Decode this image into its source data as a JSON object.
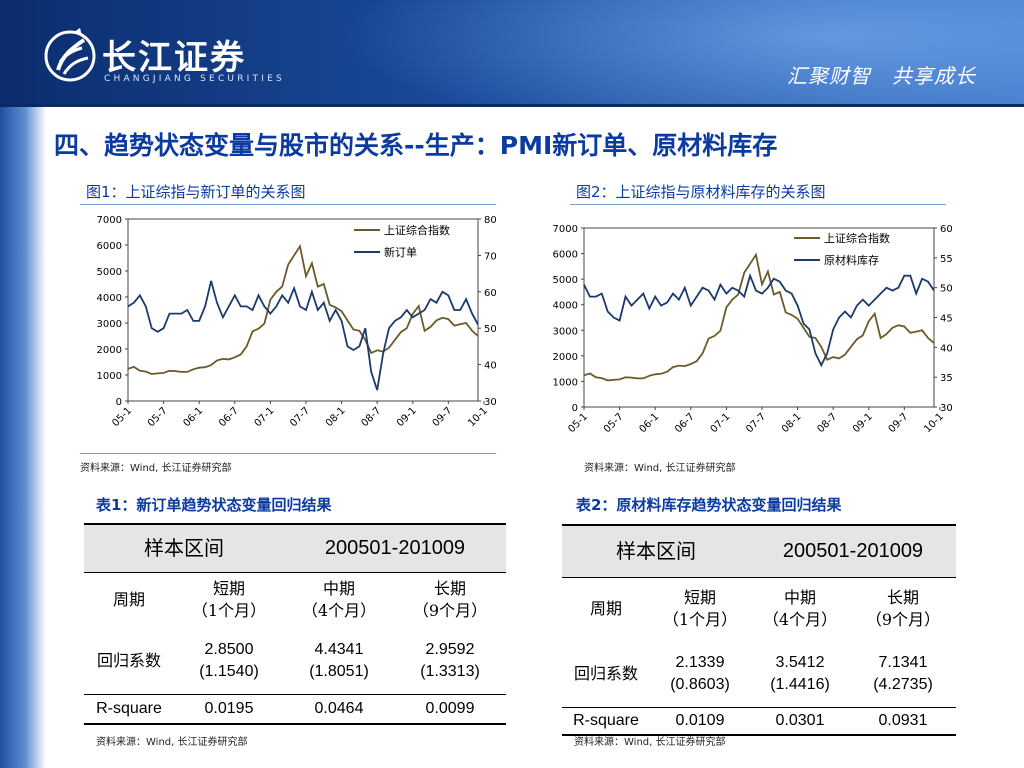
{
  "header": {
    "logo_name": "长江证券",
    "logo_sub": "CHANGJIANG SECURITIES",
    "slogan": "汇聚财智　共享成长"
  },
  "colors": {
    "title_blue": "#0b3aa0",
    "series_index": "#6b5a2a",
    "series_pmi": "#1a3a6c"
  },
  "title": "四、趋势状态变量与股市的关系--生产：PMI新订单、原材料库存",
  "figure1": {
    "caption": "图1：上证综指与新订单的关系图",
    "source": "资料来源：Wind, 长江证券研究部",
    "chart_data": {
      "type": "line",
      "x_ticks": [
        "05-1",
        "05-7",
        "06-1",
        "06-7",
        "07-1",
        "07-7",
        "08-1",
        "08-7",
        "09-1",
        "09-7",
        "10-1"
      ],
      "left_axis": {
        "ticks": [
          "7000",
          "6000",
          "5000",
          "4000",
          "3000",
          "2000",
          "1000",
          "0"
        ],
        "ylim": [
          0,
          7000
        ]
      },
      "right_axis": {
        "ticks": [
          "80",
          "70",
          "60",
          "50",
          "40",
          "30"
        ],
        "ylim": [
          30,
          80
        ]
      },
      "legend_position": "top-right",
      "series": [
        {
          "name": "上证综合指数",
          "axis": "left",
          "values": [
            1240,
            1310,
            1160,
            1130,
            1040,
            1060,
            1080,
            1160,
            1150,
            1120,
            1120,
            1220,
            1280,
            1300,
            1380,
            1560,
            1620,
            1600,
            1680,
            1790,
            2100,
            2680,
            2780,
            2980,
            3900,
            4200,
            4400,
            5250,
            5600,
            5950,
            4800,
            5300,
            4400,
            4500,
            3700,
            3600,
            3450,
            3100,
            2750,
            2700,
            2350,
            1850,
            1950,
            1900,
            2050,
            2350,
            2650,
            2800,
            3350,
            3650,
            2700,
            2850,
            3100,
            3200,
            3150,
            2900,
            2950,
            3000,
            2700,
            2500
          ]
        },
        {
          "name": "新订单",
          "axis": "right",
          "values": [
            56,
            57,
            59,
            56,
            50,
            49,
            50,
            54,
            54,
            54,
            55,
            52,
            52,
            56,
            63,
            57,
            53,
            56,
            59,
            56,
            56,
            55,
            59,
            56,
            54,
            56,
            59,
            57,
            61,
            56,
            55,
            60,
            55,
            57,
            52,
            55,
            52,
            45,
            44,
            45,
            50,
            38,
            33,
            43,
            50,
            52,
            53,
            55,
            53,
            54,
            55,
            58,
            57,
            60,
            59,
            55,
            55,
            58,
            54,
            51
          ]
        }
      ]
    }
  },
  "figure2": {
    "caption": "图2：上证综指与原材料库存的关系图",
    "source": "资料来源：Wind, 长江证券研究部",
    "chart_data": {
      "type": "line",
      "x_ticks": [
        "05-1",
        "05-7",
        "06-1",
        "06-7",
        "07-1",
        "07-7",
        "08-1",
        "08-7",
        "09-1",
        "09-7",
        "10-1"
      ],
      "left_axis": {
        "ticks": [
          "7000",
          "6000",
          "5000",
          "4000",
          "3000",
          "2000",
          "1000",
          "0"
        ],
        "ylim": [
          0,
          7000
        ]
      },
      "right_axis": {
        "ticks": [
          "60",
          "55",
          "50",
          "45",
          "40",
          "35",
          "30"
        ],
        "ylim": [
          30,
          60
        ]
      },
      "legend_position": "top-right",
      "series": [
        {
          "name": "上证综合指数",
          "axis": "left",
          "values": [
            1240,
            1310,
            1160,
            1130,
            1040,
            1060,
            1080,
            1160,
            1150,
            1120,
            1120,
            1220,
            1280,
            1300,
            1380,
            1560,
            1620,
            1600,
            1680,
            1790,
            2100,
            2680,
            2780,
            2980,
            3900,
            4200,
            4400,
            5250,
            5600,
            5950,
            4800,
            5300,
            4400,
            4500,
            3700,
            3600,
            3450,
            3100,
            2750,
            2700,
            2350,
            1850,
            1950,
            1900,
            2050,
            2350,
            2650,
            2800,
            3350,
            3650,
            2700,
            2850,
            3100,
            3200,
            3150,
            2900,
            2950,
            3000,
            2700,
            2500
          ]
        },
        {
          "name": "原材料库存",
          "axis": "right",
          "values": [
            50.5,
            48.5,
            48.5,
            49,
            46,
            45,
            44.5,
            48.5,
            47,
            48,
            49,
            46.5,
            48.5,
            47,
            47.5,
            49,
            48,
            50,
            47,
            48.5,
            50,
            49.5,
            48,
            50.5,
            49,
            50,
            49.5,
            48.5,
            52,
            49.5,
            49,
            50,
            51.5,
            51,
            49.5,
            49,
            47,
            44,
            43,
            39,
            37,
            39,
            43,
            45,
            46,
            45,
            47,
            48,
            47,
            48,
            49,
            50,
            49.5,
            50,
            52,
            52,
            49,
            51.5,
            51,
            49.5
          ]
        }
      ]
    }
  },
  "table1": {
    "caption": "表1：新订单趋势状态变量回归结果",
    "source": "资料来源：Wind, 长江证券研究部",
    "header_label": "样本区间",
    "header_value": "200501-201009",
    "period_label": "周期",
    "periods": [
      {
        "name": "短期",
        "months": "（1个月）"
      },
      {
        "name": "中期",
        "months": "（4个月）"
      },
      {
        "name": "长期",
        "months": "（9个月）"
      }
    ],
    "coef_label": "回归系数",
    "coefs": [
      {
        "value": "2.8500",
        "se": "(1.1540)"
      },
      {
        "value": "4.4341",
        "se": "(1.8051)"
      },
      {
        "value": "2.9592",
        "se": "(1.3313)"
      }
    ],
    "r2_label": "R-square",
    "r2": [
      "0.0195",
      "0.0464",
      "0.0099"
    ]
  },
  "table2": {
    "caption": "表2：原材料库存趋势状态变量回归结果",
    "source": "资料来源：Wind, 长江证券研究部",
    "header_label": "样本区间",
    "header_value": "200501-201009",
    "period_label": "周期",
    "periods": [
      {
        "name": "短期",
        "months": "（1个月）"
      },
      {
        "name": "中期",
        "months": "（4个月）"
      },
      {
        "name": "长期",
        "months": "（9个月）"
      }
    ],
    "coef_label": "回归系数",
    "coefs": [
      {
        "value": "2.1339",
        "se": "(0.8603)"
      },
      {
        "value": "3.5412",
        "se": "(1.4416)"
      },
      {
        "value": "7.1341",
        "se": "(4.2735)"
      }
    ],
    "r2_label": "R-square",
    "r2": [
      "0.0109",
      "0.0301",
      "0.0931"
    ]
  }
}
